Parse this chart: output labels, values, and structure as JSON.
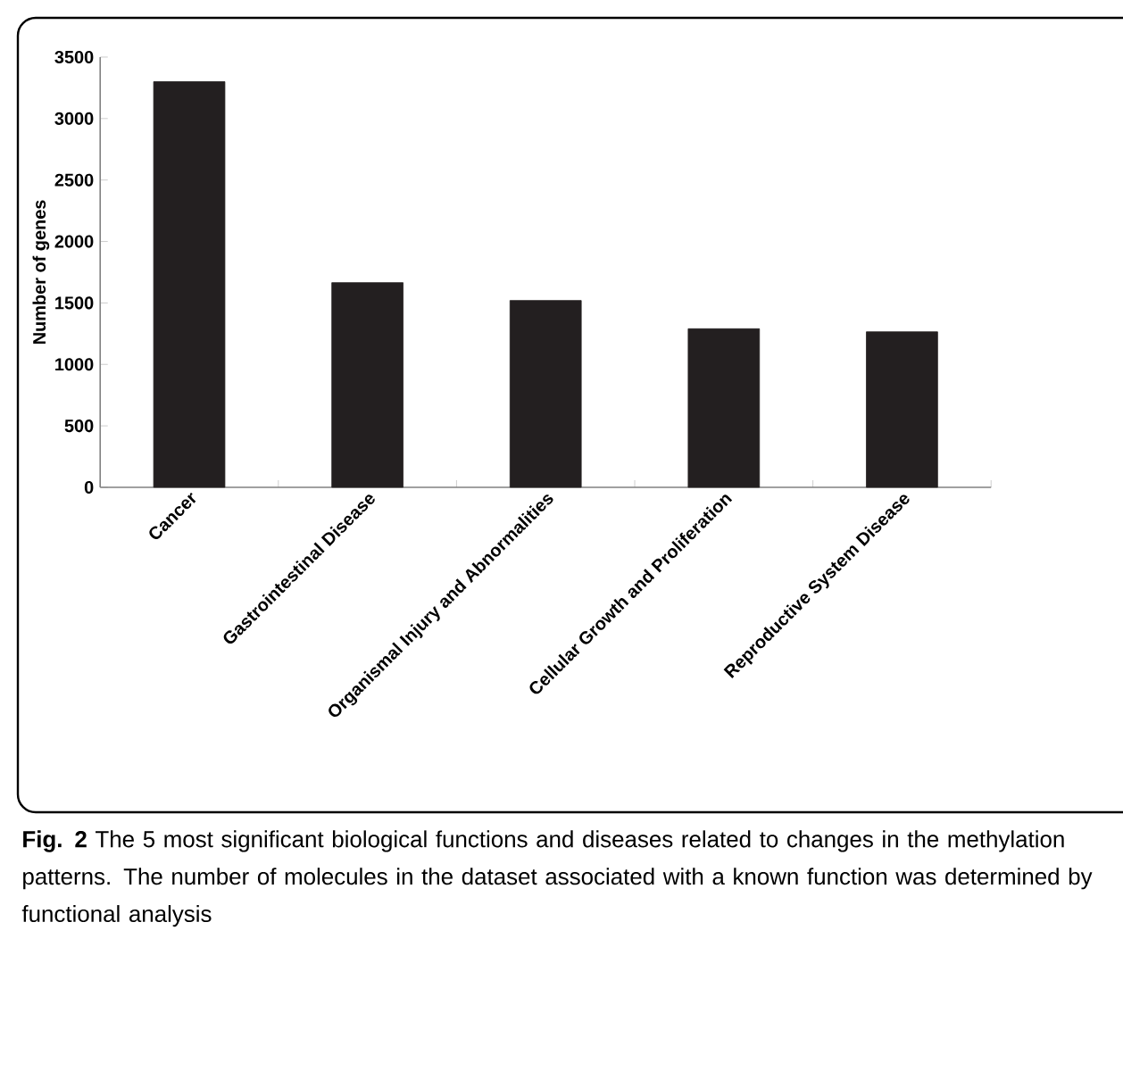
{
  "chart_data": {
    "type": "bar",
    "ylabel": "Number of genes",
    "categories": [
      "Cancer",
      "Gastrointestinal Disease",
      "Organismal Injury and Abnormalities",
      "Cellular Growth and Proliferation",
      "Reproductive System Disease"
    ],
    "values": [
      3300,
      1665,
      1520,
      1290,
      1265
    ],
    "color": "#231f20",
    "ylim": [
      0,
      3500
    ],
    "yticks": [
      0,
      500,
      1000,
      1500,
      2000,
      2500,
      3000,
      3500
    ],
    "annotations": [
      "**Fig. 2** The 5 most significant biological functions and diseases related to changes in the methylation patterns. The number of molecules in the dataset associated with a known function was determined by functional analysis"
    ]
  }
}
